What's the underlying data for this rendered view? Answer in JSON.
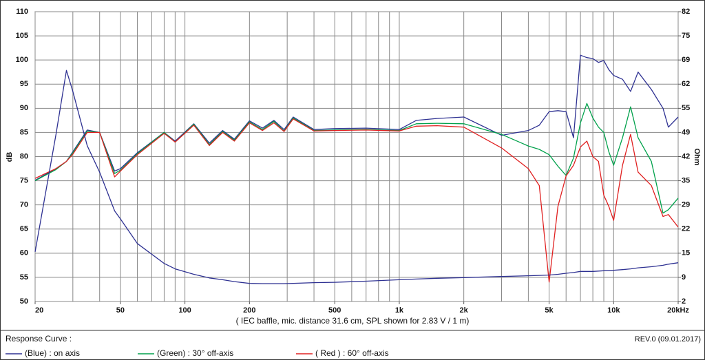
{
  "chart_data": {
    "type": "line",
    "xscale": "log",
    "grid": true,
    "xlabel": "( IEC baffle, mic. distance 31.6 cm, SPL shown for 2.83 V / 1 m)",
    "ylabel": "dB",
    "y2label": "Ohm",
    "legend_title": "Response Curve :",
    "revision": "REV.0 (09.01.2017)",
    "xlim": [
      20,
      20000
    ],
    "xticks": [
      20,
      50,
      100,
      200,
      500,
      {
        "value": 1000,
        "label": "1k"
      },
      {
        "value": 2000,
        "label": "2k"
      },
      {
        "value": 5000,
        "label": "5k"
      },
      {
        "value": 10000,
        "label": "10k"
      },
      {
        "value": 20000,
        "label": "20kHz"
      }
    ],
    "xgrid": [
      20,
      30,
      40,
      50,
      60,
      70,
      80,
      90,
      100,
      200,
      300,
      400,
      500,
      600,
      700,
      800,
      900,
      1000,
      2000,
      3000,
      4000,
      5000,
      6000,
      7000,
      8000,
      9000,
      10000,
      20000
    ],
    "ylim": [
      50,
      110
    ],
    "yticks": [
      50,
      55,
      60,
      65,
      70,
      75,
      80,
      85,
      90,
      95,
      100,
      105,
      110
    ],
    "y2lim": [
      2,
      82
    ],
    "y2ticks": [
      2,
      {
        "value": 8.667,
        "label": "9"
      },
      {
        "value": 15.333,
        "label": "15"
      },
      22,
      {
        "value": 28.667,
        "label": "29"
      },
      {
        "value": 35.333,
        "label": "35"
      },
      42,
      {
        "value": 48.667,
        "label": "49"
      },
      {
        "value": 55.333,
        "label": "55"
      },
      62,
      {
        "value": 68.667,
        "label": "69"
      },
      {
        "value": 75.333,
        "label": "75"
      },
      82
    ],
    "x": [
      20,
      25,
      28,
      30,
      35,
      40,
      47,
      50,
      60,
      80,
      90,
      110,
      130,
      150,
      170,
      200,
      230,
      260,
      290,
      320,
      400,
      500,
      700,
      1000,
      1200,
      1500,
      2000,
      3000,
      4000,
      4500,
      5000,
      5500,
      6000,
      6500,
      7000,
      7500,
      8000,
      8500,
      9000,
      9500,
      10000,
      11000,
      12000,
      13000,
      15000,
      17000,
      18000,
      20000
    ],
    "series": [
      {
        "name": "(Blue)  : on axis",
        "color": "#2e3192",
        "values": [
          75.1,
          77.5,
          79,
          81,
          85.5,
          85,
          77,
          77.5,
          80.8,
          85,
          83.2,
          86.8,
          82.8,
          85.4,
          83.6,
          87.4,
          85.9,
          87.5,
          85.6,
          88.2,
          85.6,
          85.8,
          85.9,
          85.6,
          87.5,
          87.9,
          88.2,
          84.4,
          85.4,
          86.5,
          89.3,
          89.5,
          89.3,
          83.9,
          101,
          100.5,
          100.3,
          99.5,
          99.9,
          98,
          96.8,
          96,
          93.5,
          97.5,
          93.9,
          90,
          86.1,
          88.2
        ]
      },
      {
        "name": "(Green) : 30° off-axis",
        "color": "#00a14b",
        "values": [
          75,
          77.3,
          79,
          80.8,
          85.3,
          85,
          76.5,
          77.2,
          80.6,
          85,
          83,
          86.7,
          82.5,
          85.2,
          83.4,
          87.2,
          85.6,
          87.3,
          85.3,
          88,
          85.4,
          85.5,
          85.6,
          85.4,
          86.8,
          86.9,
          86.8,
          84.6,
          82.2,
          81.5,
          80.4,
          78,
          76.1,
          79.7,
          87,
          91,
          88,
          86.1,
          85,
          81,
          78.2,
          83.9,
          90.3,
          83.9,
          79,
          68.3,
          69,
          71.4
        ]
      },
      {
        "name": "( Red ) : 60° off-axis",
        "color": "#e02020",
        "values": [
          75.5,
          77.5,
          79,
          80.5,
          85,
          85,
          75.8,
          77,
          80.4,
          84.8,
          83,
          86.5,
          82.3,
          85,
          83.2,
          87,
          85.4,
          87,
          85.2,
          87.8,
          85.3,
          85.4,
          85.5,
          85.3,
          86.3,
          86.4,
          86.1,
          81.8,
          77.5,
          74,
          54,
          69.7,
          76,
          78.2,
          82,
          83.2,
          80,
          79,
          72,
          69.7,
          66.8,
          78.2,
          84.6,
          76.8,
          74,
          67.6,
          68,
          65.4
        ]
      },
      {
        "color": "#2e3192",
        "axis": "y2",
        "values": [
          15.7,
          48,
          65.8,
          60,
          45,
          37.7,
          27,
          24.8,
          18,
          12.5,
          11,
          9.5,
          8.5,
          8,
          7.5,
          7,
          6.9,
          6.9,
          6.9,
          7,
          7.2,
          7.3,
          7.6,
          8,
          8.2,
          8.4,
          8.6,
          8.9,
          9.1,
          9.2,
          9.3,
          9.5,
          9.8,
          10,
          10.3,
          10.3,
          10.3,
          10.4,
          10.5,
          10.5,
          10.6,
          10.8,
          11,
          11.3,
          11.6,
          12,
          12.3,
          12.7
        ]
      }
    ]
  }
}
